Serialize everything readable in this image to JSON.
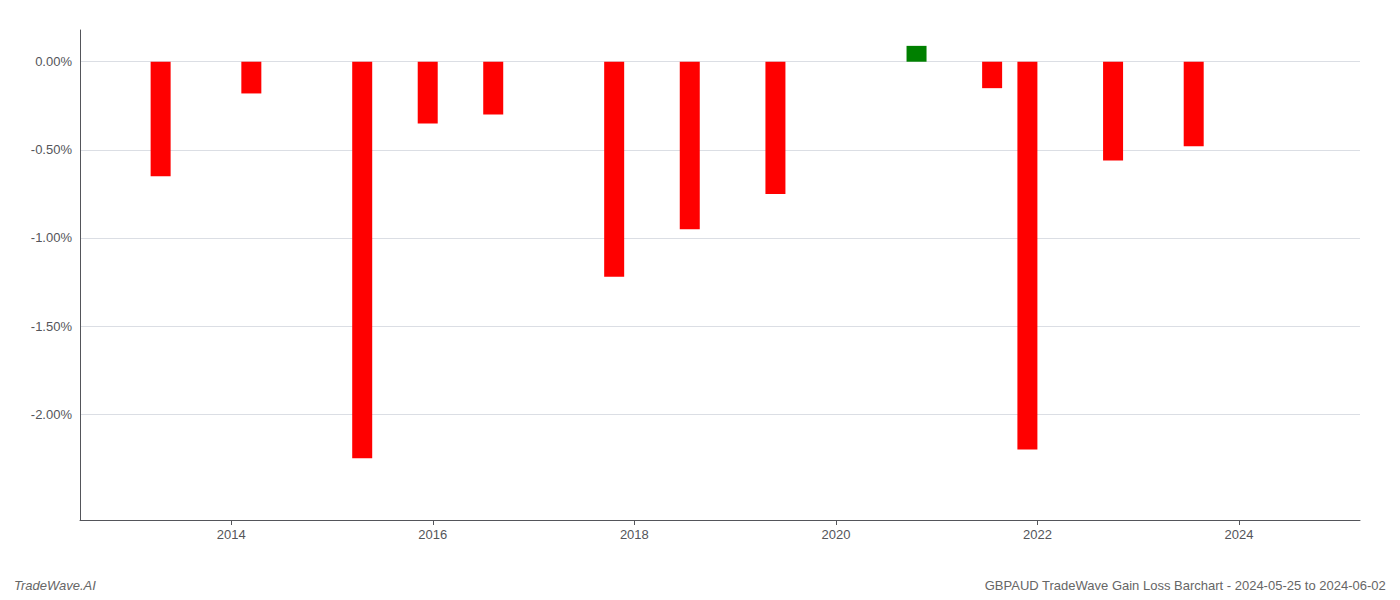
{
  "chart_data": {
    "type": "bar",
    "x": [
      2013.3,
      2014.2,
      2015.3,
      2015.95,
      2016.6,
      2017.8,
      2018.55,
      2019.4,
      2020.8,
      2021.55,
      2021.9,
      2022.75,
      2023.55
    ],
    "values": [
      -0.0065,
      -0.0018,
      -0.0225,
      -0.0035,
      -0.003,
      -0.0122,
      -0.0095,
      -0.0075,
      0.0009,
      -0.0015,
      -0.022,
      -0.0056,
      -0.0048
    ],
    "colors": [
      "#ff0000",
      "#ff0000",
      "#ff0000",
      "#ff0000",
      "#ff0000",
      "#ff0000",
      "#ff0000",
      "#ff0000",
      "#008000",
      "#ff0000",
      "#ff0000",
      "#ff0000",
      "#ff0000"
    ],
    "xlim": [
      2012.5,
      2025.2
    ],
    "xticks": [
      2014,
      2016,
      2018,
      2020,
      2022,
      2024
    ],
    "ylim": [
      -0.026,
      0.0018
    ],
    "yticks": [
      {
        "value": 0.0,
        "label": "0.00%"
      },
      {
        "value": -0.005,
        "label": "-0.50%"
      },
      {
        "value": -0.01,
        "label": "-1.00%"
      },
      {
        "value": -0.015,
        "label": "-1.50%"
      },
      {
        "value": -0.02,
        "label": "-2.00%"
      }
    ],
    "grid": true,
    "annotations": [
      "TradeWave.AI",
      "GBPAUD TradeWave Gain Loss Barchart - 2024-05-25 to 2024-06-02"
    ]
  }
}
